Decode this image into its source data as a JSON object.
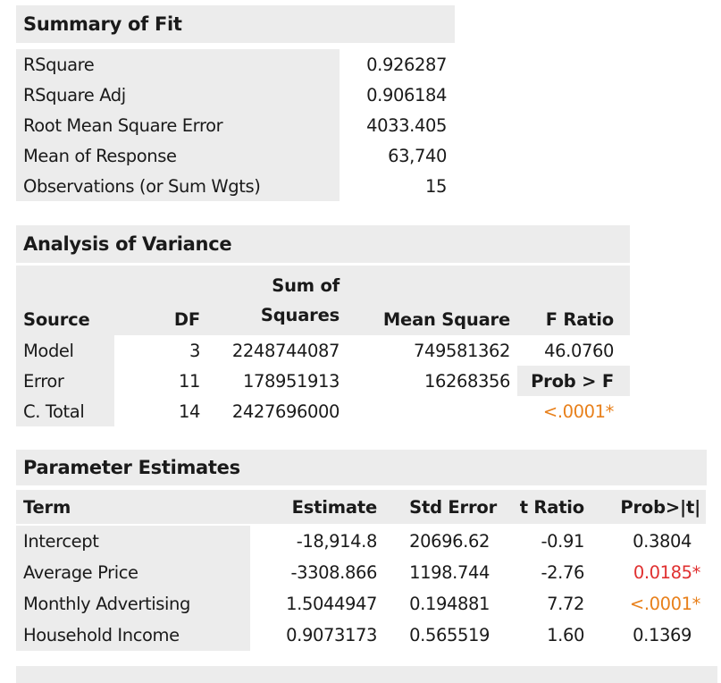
{
  "summary_of_fit": {
    "title": "Summary of Fit",
    "rows": [
      {
        "label": "RSquare",
        "value": "0.926287"
      },
      {
        "label": "RSquare Adj",
        "value": "0.906184"
      },
      {
        "label": "Root Mean Square Error",
        "value": "4033.405"
      },
      {
        "label": "Mean of Response",
        "value": "63,740"
      },
      {
        "label": "Observations (or Sum Wgts)",
        "value": "15"
      }
    ]
  },
  "anova": {
    "title": "Analysis of Variance",
    "headers": {
      "source": "Source",
      "df": "DF",
      "ss_top": "Sum of",
      "ss_bottom": "Squares",
      "ms": "Mean Square",
      "f": "F Ratio"
    },
    "rows": [
      {
        "source": "Model",
        "df": "3",
        "ss": "2248744087",
        "ms": "749581362",
        "f": "46.0760"
      },
      {
        "source": "Error",
        "df": "11",
        "ss": "178951913",
        "ms": "16268356",
        "f": "Prob > F"
      },
      {
        "source": "C. Total",
        "df": "14",
        "ss": "2427696000",
        "ms": "",
        "f": "<.0001*"
      }
    ]
  },
  "parameter_estimates": {
    "title": "Parameter Estimates",
    "headers": {
      "term": "Term",
      "estimate": "Estimate",
      "std_error": "Std Error",
      "t_ratio": "t Ratio",
      "prob": "Prob>|t|"
    },
    "rows": [
      {
        "term": "Intercept",
        "estimate": "-18,914.8",
        "std_error": "20696.62",
        "t_ratio": "-0.91",
        "prob": "0.3804"
      },
      {
        "term": "Average Price",
        "estimate": "-3308.866",
        "std_error": "1198.744",
        "t_ratio": "-2.76",
        "prob": "0.0185*"
      },
      {
        "term": "Monthly Advertising",
        "estimate": "1.5044947",
        "std_error": "0.194881",
        "t_ratio": "7.72",
        "prob": "<.0001*"
      },
      {
        "term": "Household Income",
        "estimate": "0.9073173",
        "std_error": "0.565519",
        "t_ratio": "1.60",
        "prob": "0.1369"
      }
    ]
  },
  "colors": {
    "header_bg": "#ececec",
    "significant_orange": "#e8801b",
    "significant_red": "#e03030"
  }
}
